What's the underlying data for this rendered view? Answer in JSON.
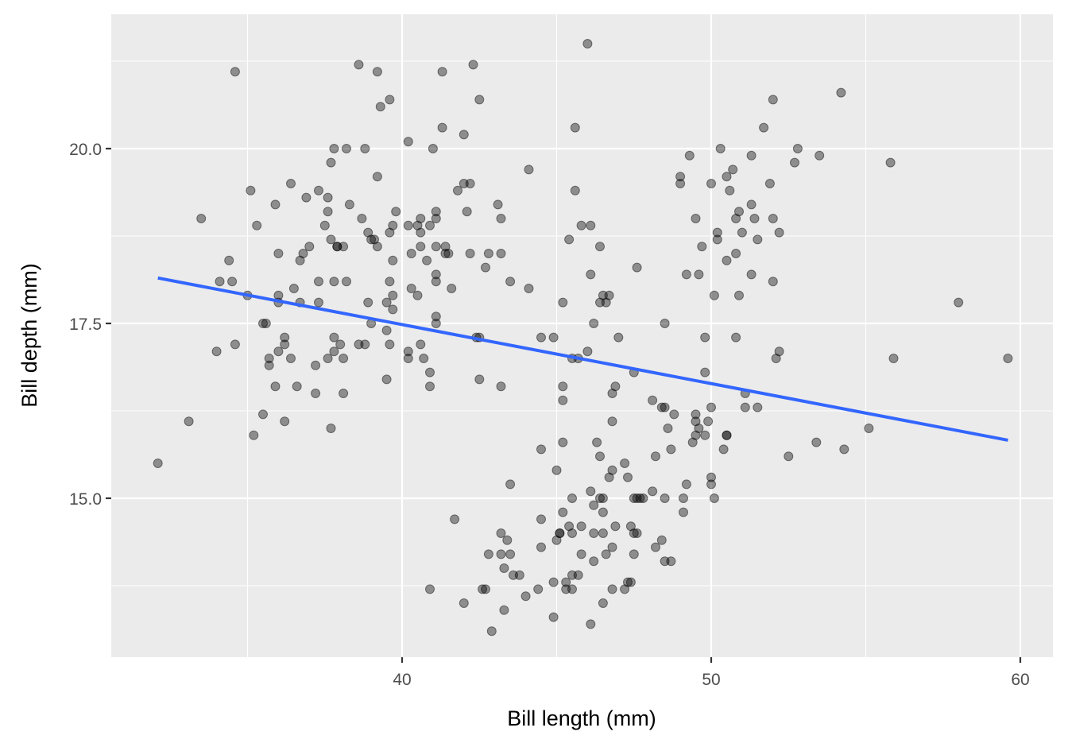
{
  "chart_data": {
    "type": "scatter",
    "title": "",
    "xlabel": "Bill length (mm)",
    "ylabel": "Bill depth (mm)",
    "xlim": [
      31.5,
      61.0
    ],
    "ylim": [
      12.7,
      21.9
    ],
    "x_ticks": [
      40,
      50,
      60
    ],
    "x_tick_labels": [
      "40",
      "50",
      "60"
    ],
    "y_ticks": [
      15.0,
      17.5,
      20.0
    ],
    "y_tick_labels": [
      "15.0",
      "17.5",
      "20.0"
    ],
    "x_minor_ticks": [
      35,
      45,
      55
    ],
    "y_minor_ticks": [
      13.75,
      16.25,
      18.75,
      21.25
    ],
    "grid": true,
    "legend": "none",
    "colors": {
      "panel_background": "#EBEBEB",
      "grid_line": "#FFFFFF",
      "point_fill": "#000000",
      "point_alpha": 0.4,
      "trend_line": "#3366FF",
      "tick_label": "#4D4D4D",
      "axis_title": "#000000"
    },
    "trend_line": {
      "method": "lm",
      "x": [
        32.1,
        59.6
      ],
      "y": [
        18.15,
        15.83
      ]
    },
    "points": [
      [
        32.1,
        15.5
      ],
      [
        33.1,
        16.1
      ],
      [
        33.5,
        19.0
      ],
      [
        34.0,
        17.1
      ],
      [
        34.1,
        18.1
      ],
      [
        34.4,
        18.4
      ],
      [
        34.5,
        18.1
      ],
      [
        34.6,
        21.1
      ],
      [
        34.6,
        17.2
      ],
      [
        35.0,
        17.9
      ],
      [
        35.1,
        19.4
      ],
      [
        35.2,
        15.9
      ],
      [
        35.3,
        18.9
      ],
      [
        35.5,
        16.2
      ],
      [
        35.5,
        17.5
      ],
      [
        35.6,
        17.5
      ],
      [
        35.7,
        16.9
      ],
      [
        35.7,
        17.0
      ],
      [
        35.9,
        19.2
      ],
      [
        35.9,
        16.6
      ],
      [
        36.0,
        18.5
      ],
      [
        36.0,
        17.8
      ],
      [
        36.0,
        17.1
      ],
      [
        36.0,
        17.9
      ],
      [
        36.2,
        16.1
      ],
      [
        36.2,
        17.3
      ],
      [
        36.2,
        17.2
      ],
      [
        36.4,
        17.0
      ],
      [
        36.4,
        19.5
      ],
      [
        36.5,
        18.0
      ],
      [
        36.6,
        16.6
      ],
      [
        36.7,
        18.4
      ],
      [
        36.7,
        17.8
      ],
      [
        36.8,
        18.5
      ],
      [
        36.9,
        19.3
      ],
      [
        37.0,
        18.6
      ],
      [
        37.2,
        16.9
      ],
      [
        37.2,
        16.5
      ],
      [
        37.3,
        18.1
      ],
      [
        37.3,
        17.8
      ],
      [
        37.3,
        19.4
      ],
      [
        37.6,
        19.3
      ],
      [
        37.5,
        18.9
      ],
      [
        37.6,
        17.0
      ],
      [
        37.6,
        19.1
      ],
      [
        37.7,
        16.0
      ],
      [
        37.7,
        19.8
      ],
      [
        37.7,
        18.7
      ],
      [
        37.8,
        18.1
      ],
      [
        37.8,
        17.1
      ],
      [
        37.8,
        20.0
      ],
      [
        37.8,
        17.3
      ],
      [
        37.9,
        18.6
      ],
      [
        37.9,
        18.6
      ],
      [
        38.0,
        17.2
      ],
      [
        38.1,
        18.6
      ],
      [
        38.1,
        16.5
      ],
      [
        38.1,
        17.0
      ],
      [
        38.2,
        18.1
      ],
      [
        38.2,
        20.0
      ],
      [
        38.3,
        19.2
      ],
      [
        38.6,
        17.2
      ],
      [
        38.6,
        21.2
      ],
      [
        38.7,
        19.0
      ],
      [
        38.8,
        17.2
      ],
      [
        38.8,
        20.0
      ],
      [
        38.9,
        17.8
      ],
      [
        38.9,
        18.8
      ],
      [
        39.0,
        17.5
      ],
      [
        39.0,
        18.7
      ],
      [
        39.1,
        18.7
      ],
      [
        39.2,
        19.6
      ],
      [
        39.2,
        21.1
      ],
      [
        39.2,
        18.6
      ],
      [
        39.3,
        20.6
      ],
      [
        39.5,
        17.4
      ],
      [
        39.5,
        16.7
      ],
      [
        39.5,
        17.8
      ],
      [
        39.6,
        18.8
      ],
      [
        39.6,
        17.2
      ],
      [
        39.6,
        20.7
      ],
      [
        39.6,
        18.1
      ],
      [
        39.7,
        17.7
      ],
      [
        39.7,
        17.9
      ],
      [
        39.7,
        18.9
      ],
      [
        39.7,
        18.4
      ],
      [
        39.8,
        19.1
      ],
      [
        40.2,
        17.1
      ],
      [
        40.2,
        18.9
      ],
      [
        40.2,
        17.0
      ],
      [
        40.2,
        20.1
      ],
      [
        40.3,
        18.0
      ],
      [
        40.3,
        18.5
      ],
      [
        40.5,
        18.9
      ],
      [
        40.5,
        17.9
      ],
      [
        40.6,
        18.8
      ],
      [
        40.6,
        17.2
      ],
      [
        40.6,
        19.0
      ],
      [
        40.6,
        18.6
      ],
      [
        40.7,
        17.0
      ],
      [
        40.8,
        18.4
      ],
      [
        40.9,
        18.9
      ],
      [
        40.9,
        16.6
      ],
      [
        40.9,
        16.8
      ],
      [
        41.0,
        20.0
      ],
      [
        41.1,
        17.6
      ],
      [
        41.1,
        18.2
      ],
      [
        41.1,
        19.1
      ],
      [
        41.1,
        18.6
      ],
      [
        41.1,
        17.5
      ],
      [
        41.1,
        19.0
      ],
      [
        41.1,
        18.1
      ],
      [
        41.3,
        20.3
      ],
      [
        41.3,
        21.1
      ],
      [
        41.4,
        18.6
      ],
      [
        41.4,
        18.5
      ],
      [
        41.5,
        18.5
      ],
      [
        41.6,
        18.0
      ],
      [
        41.8,
        19.4
      ],
      [
        42.0,
        19.5
      ],
      [
        42.0,
        20.2
      ],
      [
        42.1,
        19.1
      ],
      [
        42.2,
        18.5
      ],
      [
        42.2,
        19.5
      ],
      [
        42.3,
        21.2
      ],
      [
        42.4,
        17.3
      ],
      [
        42.5,
        20.7
      ],
      [
        42.5,
        17.3
      ],
      [
        42.5,
        16.7
      ],
      [
        42.7,
        18.3
      ],
      [
        42.8,
        18.5
      ],
      [
        43.1,
        19.2
      ],
      [
        43.2,
        19.0
      ],
      [
        43.2,
        18.5
      ],
      [
        43.2,
        16.6
      ],
      [
        43.5,
        18.1
      ],
      [
        44.1,
        19.7
      ],
      [
        44.1,
        18.0
      ],
      [
        44.5,
        17.3
      ],
      [
        44.9,
        17.3
      ],
      [
        45.2,
        17.8
      ],
      [
        45.2,
        16.6
      ],
      [
        45.2,
        16.4
      ],
      [
        45.4,
        18.7
      ],
      [
        45.5,
        17.0
      ],
      [
        45.6,
        19.4
      ],
      [
        45.6,
        20.3
      ],
      [
        45.7,
        17.0
      ],
      [
        45.8,
        18.9
      ],
      [
        46.0,
        17.1
      ],
      [
        46.0,
        21.5
      ],
      [
        46.1,
        18.2
      ],
      [
        46.1,
        18.9
      ],
      [
        46.2,
        17.5
      ],
      [
        46.4,
        18.6
      ],
      [
        46.4,
        17.8
      ],
      [
        46.5,
        17.9
      ],
      [
        46.6,
        17.8
      ],
      [
        46.7,
        17.9
      ],
      [
        46.8,
        16.5
      ],
      [
        46.8,
        16.1
      ],
      [
        46.9,
        16.6
      ],
      [
        47.0,
        17.3
      ],
      [
        47.5,
        16.8
      ],
      [
        47.6,
        18.3
      ],
      [
        48.5,
        17.5
      ],
      [
        49.0,
        19.5
      ],
      [
        49.0,
        19.6
      ],
      [
        49.2,
        18.2
      ],
      [
        49.3,
        19.9
      ],
      [
        49.5,
        19.0
      ],
      [
        49.6,
        18.2
      ],
      [
        49.7,
        18.6
      ],
      [
        49.8,
        17.3
      ],
      [
        49.8,
        16.8
      ],
      [
        50.0,
        19.5
      ],
      [
        50.1,
        17.9
      ],
      [
        50.2,
        18.8
      ],
      [
        50.2,
        18.7
      ],
      [
        50.3,
        20.0
      ],
      [
        50.5,
        18.4
      ],
      [
        50.5,
        19.6
      ],
      [
        50.6,
        19.4
      ],
      [
        50.7,
        19.7
      ],
      [
        50.8,
        18.5
      ],
      [
        50.8,
        17.3
      ],
      [
        50.8,
        19.0
      ],
      [
        50.9,
        17.9
      ],
      [
        50.9,
        19.1
      ],
      [
        51.0,
        18.8
      ],
      [
        51.3,
        18.2
      ],
      [
        51.3,
        19.2
      ],
      [
        51.3,
        19.9
      ],
      [
        51.4,
        19.0
      ],
      [
        51.5,
        18.7
      ],
      [
        51.7,
        20.3
      ],
      [
        51.9,
        19.5
      ],
      [
        52.0,
        18.1
      ],
      [
        52.0,
        20.7
      ],
      [
        52.0,
        19.0
      ],
      [
        52.2,
        18.8
      ],
      [
        52.2,
        17.1
      ],
      [
        52.1,
        17.0
      ],
      [
        52.7,
        19.8
      ],
      [
        52.8,
        20.0
      ],
      [
        53.5,
        19.9
      ],
      [
        54.2,
        20.8
      ],
      [
        55.8,
        19.8
      ],
      [
        58.0,
        17.8
      ],
      [
        55.9,
        17.0
      ],
      [
        59.6,
        17.0
      ],
      [
        55.1,
        16.0
      ],
      [
        54.3,
        15.7
      ],
      [
        53.4,
        15.8
      ],
      [
        52.5,
        15.6
      ],
      [
        51.5,
        16.3
      ],
      [
        51.1,
        16.5
      ],
      [
        51.1,
        16.3
      ],
      [
        50.5,
        15.9
      ],
      [
        50.5,
        15.9
      ],
      [
        50.4,
        15.7
      ],
      [
        50.1,
        15.0
      ],
      [
        50.0,
        16.3
      ],
      [
        50.0,
        15.3
      ],
      [
        50.0,
        15.2
      ],
      [
        49.9,
        16.1
      ],
      [
        49.8,
        15.9
      ],
      [
        49.6,
        16.0
      ],
      [
        49.5,
        16.2
      ],
      [
        49.5,
        16.1
      ],
      [
        49.5,
        15.9
      ],
      [
        49.4,
        15.8
      ],
      [
        49.2,
        15.2
      ],
      [
        49.1,
        15.0
      ],
      [
        49.1,
        14.8
      ],
      [
        48.8,
        16.2
      ],
      [
        48.7,
        15.7
      ],
      [
        48.7,
        14.1
      ],
      [
        48.6,
        16.0
      ],
      [
        48.5,
        16.3
      ],
      [
        48.5,
        15.0
      ],
      [
        48.5,
        14.1
      ],
      [
        48.4,
        16.3
      ],
      [
        48.4,
        14.4
      ],
      [
        48.2,
        15.6
      ],
      [
        48.2,
        14.3
      ],
      [
        48.1,
        16.4
      ],
      [
        48.1,
        15.1
      ],
      [
        47.8,
        15.0
      ],
      [
        47.7,
        15.0
      ],
      [
        47.6,
        15.0
      ],
      [
        47.6,
        14.5
      ],
      [
        47.5,
        15.0
      ],
      [
        47.5,
        14.2
      ],
      [
        47.5,
        14.5
      ],
      [
        47.4,
        14.6
      ],
      [
        47.3,
        15.3
      ],
      [
        47.3,
        13.8
      ],
      [
        47.2,
        15.5
      ],
      [
        47.2,
        13.7
      ],
      [
        46.9,
        14.6
      ],
      [
        46.8,
        15.4
      ],
      [
        46.8,
        14.3
      ],
      [
        46.8,
        13.7
      ],
      [
        46.7,
        15.3
      ],
      [
        46.6,
        14.2
      ],
      [
        46.5,
        15.0
      ],
      [
        46.5,
        14.8
      ],
      [
        46.5,
        14.5
      ],
      [
        46.5,
        13.5
      ],
      [
        46.4,
        15.6
      ],
      [
        46.4,
        15.0
      ],
      [
        46.3,
        15.8
      ],
      [
        46.2,
        14.9
      ],
      [
        46.2,
        14.5
      ],
      [
        46.2,
        14.1
      ],
      [
        46.1,
        15.1
      ],
      [
        46.1,
        13.2
      ],
      [
        45.8,
        14.6
      ],
      [
        45.8,
        14.2
      ],
      [
        45.7,
        13.9
      ],
      [
        45.5,
        15.0
      ],
      [
        45.5,
        14.5
      ],
      [
        45.5,
        13.9
      ],
      [
        45.5,
        13.7
      ],
      [
        45.4,
        14.6
      ],
      [
        45.3,
        13.7
      ],
      [
        45.3,
        13.8
      ],
      [
        45.2,
        15.8
      ],
      [
        45.2,
        14.8
      ],
      [
        45.1,
        14.5
      ],
      [
        45.1,
        14.5
      ],
      [
        45.0,
        15.4
      ],
      [
        45.0,
        14.4
      ],
      [
        44.9,
        13.8
      ],
      [
        44.9,
        13.3
      ],
      [
        44.5,
        15.7
      ],
      [
        44.5,
        14.7
      ],
      [
        44.5,
        14.3
      ],
      [
        44.4,
        13.7
      ],
      [
        43.6,
        13.9
      ],
      [
        43.5,
        15.2
      ],
      [
        43.5,
        14.2
      ],
      [
        43.4,
        14.4
      ],
      [
        43.3,
        14.0
      ],
      [
        43.3,
        13.4
      ],
      [
        43.2,
        14.5
      ],
      [
        43.2,
        14.2
      ],
      [
        42.9,
        13.1
      ],
      [
        42.8,
        14.2
      ],
      [
        42.7,
        13.7
      ],
      [
        42.6,
        13.7
      ],
      [
        42.0,
        13.5
      ],
      [
        41.7,
        14.7
      ],
      [
        40.9,
        13.7
      ],
      [
        44.0,
        13.6
      ],
      [
        43.8,
        13.9
      ],
      [
        47.4,
        13.8
      ]
    ]
  }
}
